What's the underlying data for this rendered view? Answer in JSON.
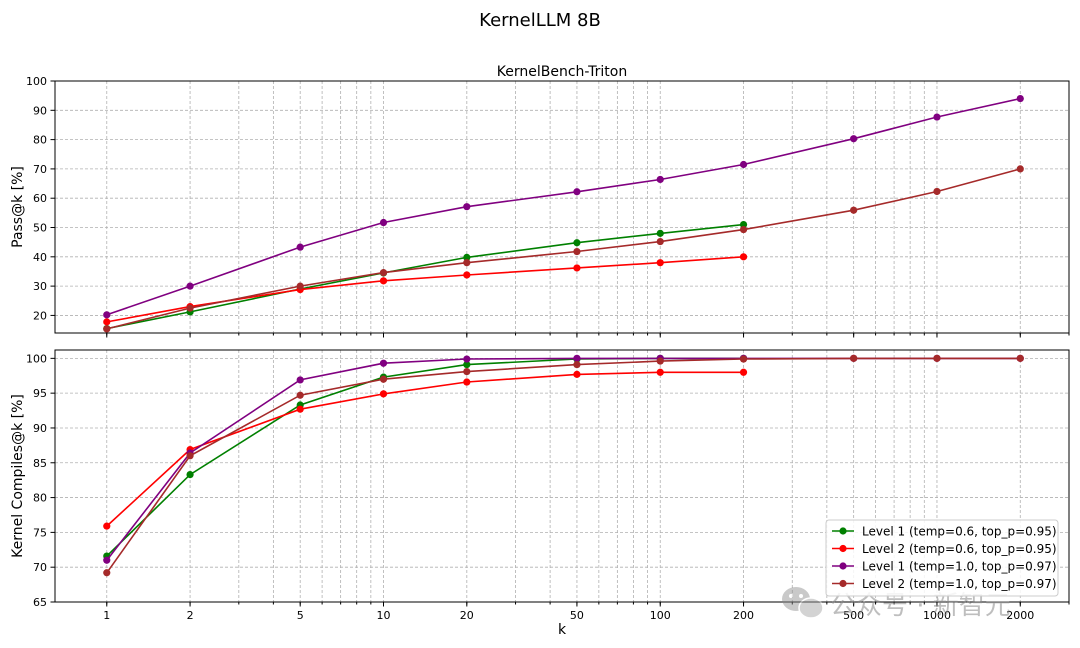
{
  "suptitle": "KernelLLM 8B",
  "chart_data": [
    {
      "type": "line",
      "title": "KernelBench-Triton",
      "xlabel": "",
      "ylabel": "Pass@k [%]",
      "x_scale": "log",
      "xlim": [
        0.65,
        3000
      ],
      "ylim": [
        14,
        100
      ],
      "yticks": [
        20,
        30,
        40,
        50,
        60,
        70,
        80,
        90,
        100
      ],
      "grid": true,
      "series": [
        {
          "name": "Level 1 (temp=0.6, top_p=0.95)",
          "color": "#008000",
          "x": [
            1,
            2,
            5,
            10,
            20,
            50,
            100,
            200
          ],
          "y": [
            15.5,
            21.2,
            29.0,
            34.5,
            39.8,
            44.8,
            48.0,
            51.0
          ]
        },
        {
          "name": "Level 2 (temp=0.6, top_p=0.95)",
          "color": "#ff0000",
          "x": [
            1,
            2,
            5,
            10,
            20,
            50,
            100,
            200
          ],
          "y": [
            17.8,
            23.0,
            28.8,
            31.8,
            33.8,
            36.2,
            38.0,
            40.0
          ]
        },
        {
          "name": "Level 1 (temp=1.0, top_p=0.97)",
          "color": "#800080",
          "x": [
            1,
            2,
            5,
            10,
            20,
            50,
            100,
            200,
            500,
            1000,
            2000
          ],
          "y": [
            20.2,
            30.0,
            43.3,
            51.7,
            57.1,
            62.2,
            66.4,
            71.5,
            80.3,
            87.7,
            94.0
          ]
        },
        {
          "name": "Level 2 (temp=1.0, top_p=0.97)",
          "color": "#a52a2a",
          "x": [
            1,
            2,
            5,
            10,
            20,
            50,
            100,
            200,
            500,
            1000,
            2000
          ],
          "y": [
            15.4,
            22.5,
            30.0,
            34.6,
            38.0,
            41.8,
            45.2,
            49.3,
            55.9,
            62.3,
            70.0
          ]
        }
      ]
    },
    {
      "type": "line",
      "title": "",
      "xlabel": "k",
      "ylabel": "Kernel Compiles@k [%]",
      "x_scale": "log",
      "xlim": [
        0.65,
        3000
      ],
      "ylim": [
        65,
        101.2
      ],
      "yticks": [
        65,
        70,
        75,
        80,
        85,
        90,
        95,
        100
      ],
      "xticks": [
        1,
        2,
        5,
        10,
        20,
        50,
        100,
        200,
        500,
        1000,
        2000
      ],
      "xtick_labels": [
        "1",
        "2",
        "5",
        "10",
        "20",
        "50",
        "100",
        "200",
        "500",
        "1000",
        "2000"
      ],
      "grid": true,
      "legend": "bottom-right",
      "series": [
        {
          "name": "Level 1 (temp=0.6, top_p=0.95)",
          "color": "#008000",
          "x": [
            1,
            2,
            5,
            10,
            20,
            50,
            100,
            200
          ],
          "y": [
            71.6,
            83.3,
            93.3,
            97.3,
            99.1,
            99.9,
            100.0,
            100.0
          ]
        },
        {
          "name": "Level 2 (temp=0.6, top_p=0.95)",
          "color": "#ff0000",
          "x": [
            1,
            2,
            5,
            10,
            20,
            50,
            100,
            200
          ],
          "y": [
            75.9,
            86.9,
            92.7,
            94.9,
            96.6,
            97.7,
            98.0,
            98.0
          ]
        },
        {
          "name": "Level 1 (temp=1.0, top_p=0.97)",
          "color": "#800080",
          "x": [
            1,
            2,
            5,
            10,
            20,
            50,
            100,
            200,
            500,
            1000,
            2000
          ],
          "y": [
            71.0,
            86.4,
            96.9,
            99.3,
            99.9,
            100.0,
            100.0,
            100.0,
            100.0,
            100.0,
            100.0
          ]
        },
        {
          "name": "Level 2 (temp=1.0, top_p=0.97)",
          "color": "#a52a2a",
          "x": [
            1,
            2,
            5,
            10,
            20,
            50,
            100,
            200,
            500,
            1000,
            2000
          ],
          "y": [
            69.2,
            86.0,
            94.7,
            97.0,
            98.1,
            99.1,
            99.6,
            99.9,
            100.0,
            100.0,
            100.0
          ]
        }
      ]
    }
  ],
  "watermark": {
    "text": "公众号 · 新智元"
  }
}
